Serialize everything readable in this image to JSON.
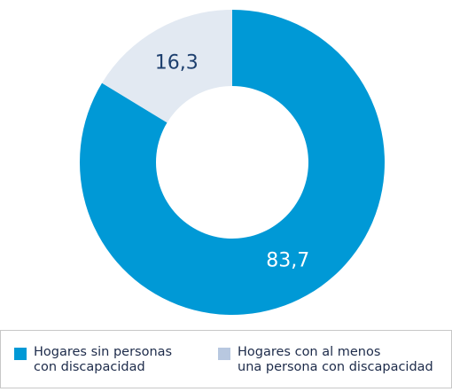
{
  "chart_data": {
    "type": "donut",
    "series": [
      {
        "name": "Hogares sin personas\ncon discapacidad",
        "color": "#0099d6",
        "values": [
          83.7
        ],
        "value_labels": [
          "83,7"
        ]
      },
      {
        "name": "Hogares con al menos\nuna persona con discapacidad",
        "color": "#e2e9f2",
        "values": [
          16.3
        ],
        "value_labels": [
          "16,3"
        ]
      }
    ],
    "legend": "bottom"
  }
}
